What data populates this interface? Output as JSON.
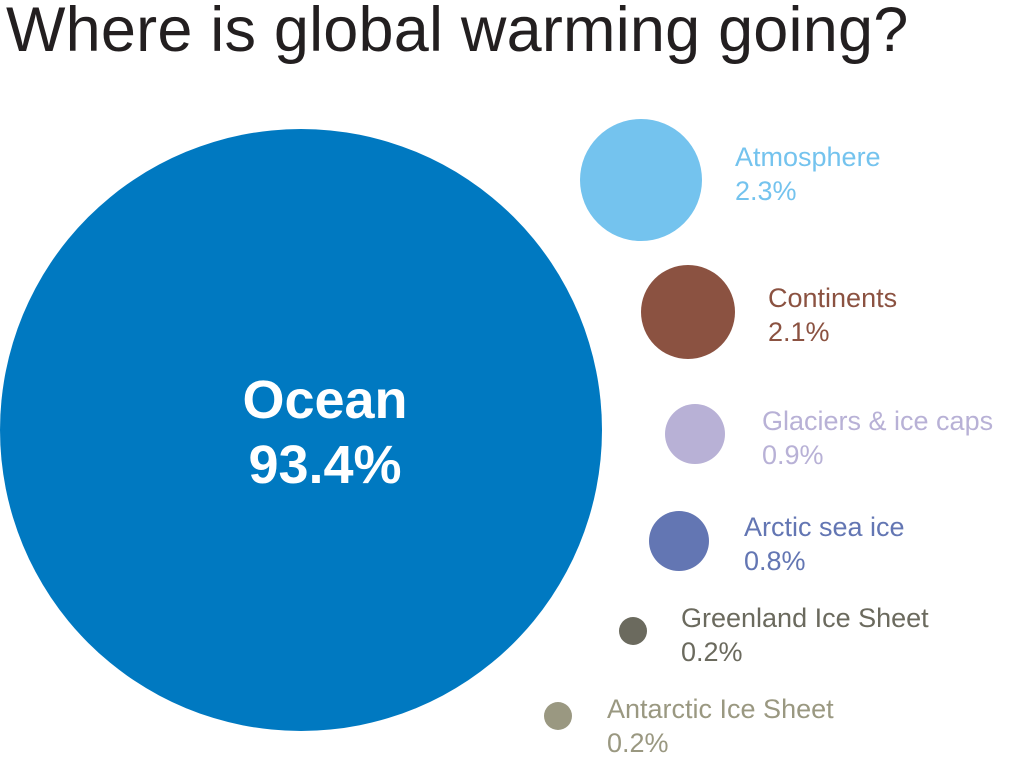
{
  "chart_data": {
    "type": "bubble",
    "title": "Where is global warming going?",
    "unit": "%",
    "categories": [
      "Ocean",
      "Atmosphere",
      "Continents",
      "Glaciers & ice caps",
      "Arctic sea ice",
      "Greenland Ice Sheet",
      "Antarctic Ice Sheet"
    ],
    "values": [
      93.4,
      2.3,
      2.1,
      0.9,
      0.8,
      0.2,
      0.2
    ],
    "labels": [
      "93.4%",
      "2.3%",
      "2.1%",
      "0.9%",
      "0.8%",
      "0.2%",
      "0.2%"
    ],
    "colors": [
      "#0079c1",
      "#74c3ee",
      "#8b5241",
      "#b8b1d6",
      "#6376b3",
      "#6b6a5e",
      "#9a9881"
    ],
    "legend": "none",
    "grid": false
  }
}
